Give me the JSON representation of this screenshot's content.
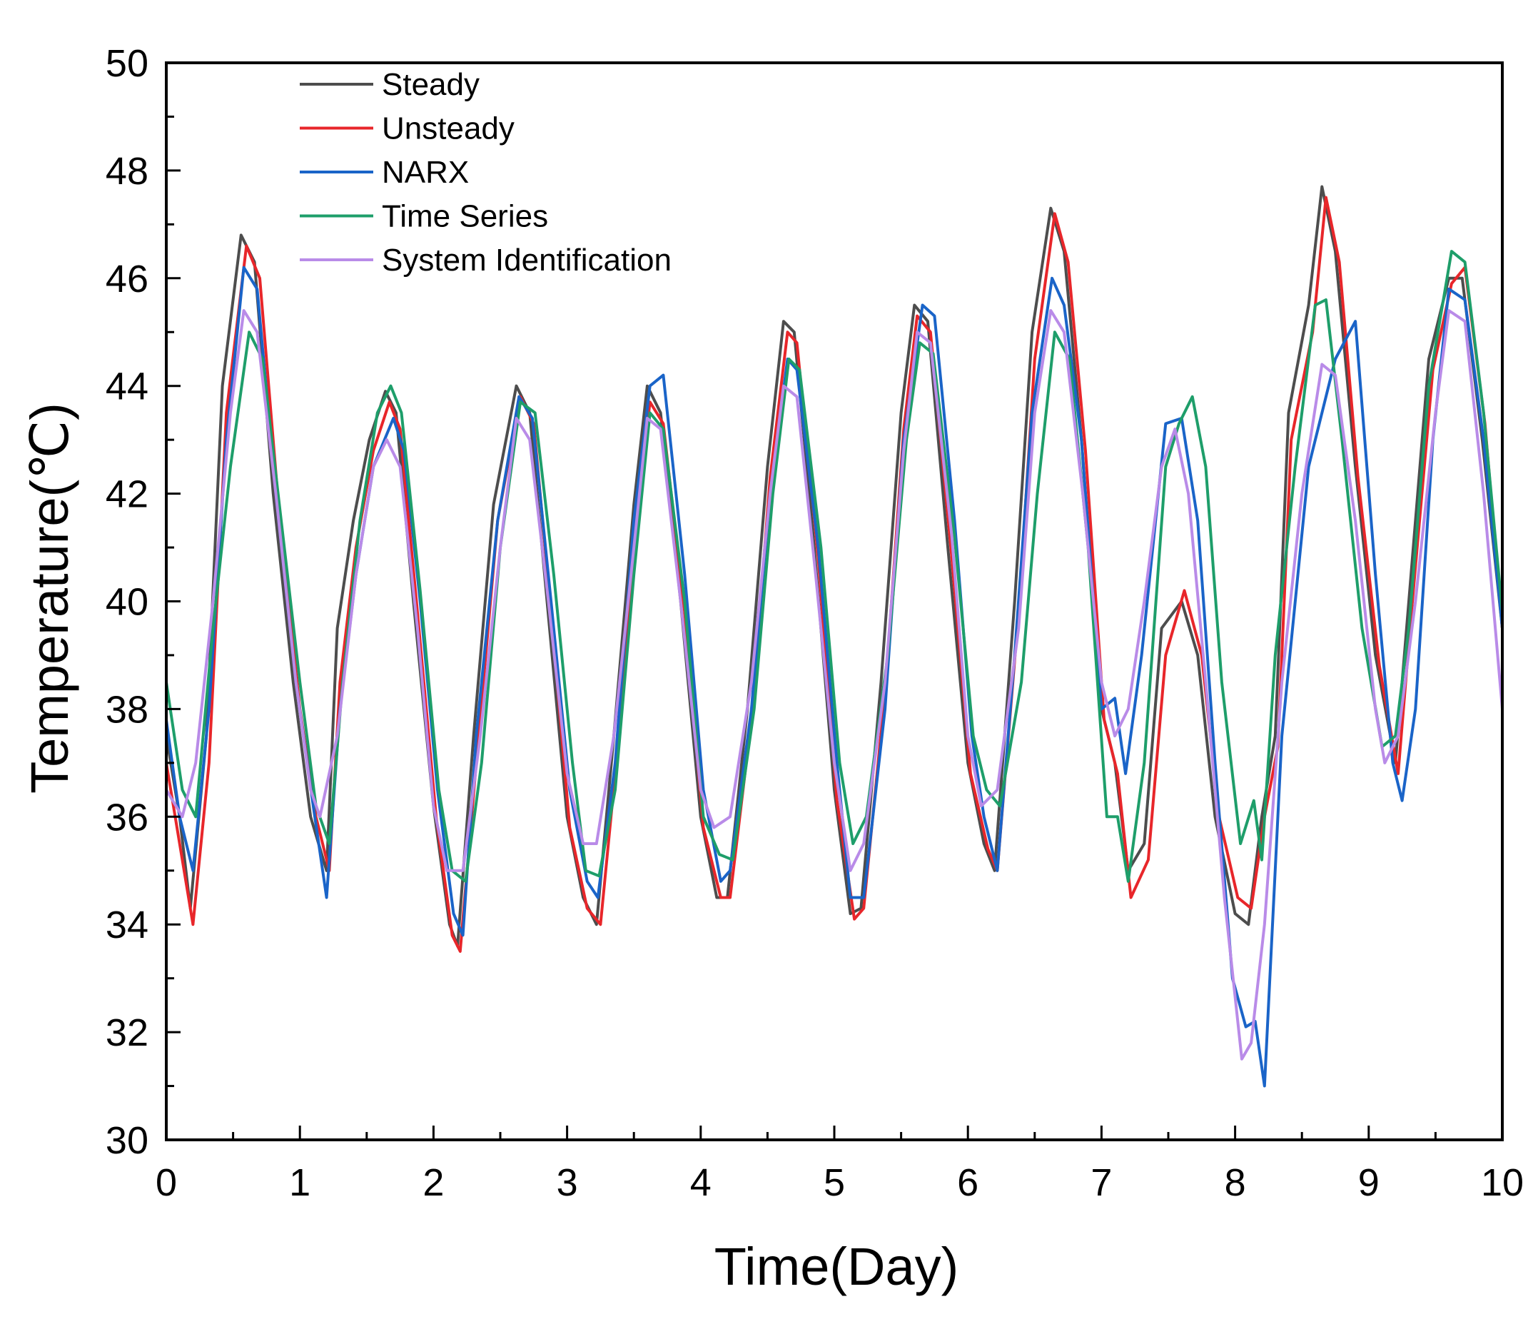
{
  "chart_data": {
    "type": "line",
    "title": "",
    "xlabel": "Time(Day)",
    "ylabel": "Temperature(℃)",
    "xlim": [
      0,
      10
    ],
    "ylim": [
      30,
      50
    ],
    "xticks": [
      0,
      1,
      2,
      3,
      4,
      5,
      6,
      7,
      8,
      9,
      10
    ],
    "yticks": [
      30,
      32,
      34,
      36,
      38,
      40,
      42,
      44,
      46,
      48,
      50
    ],
    "grid": false,
    "legend_position": "top-left",
    "series": [
      {
        "name": "Steady",
        "color": "#4d4d4d",
        "x": [
          0.0,
          0.1,
          0.18,
          0.3,
          0.42,
          0.56,
          0.66,
          0.8,
          0.95,
          1.08,
          1.2,
          1.28,
          1.4,
          1.52,
          1.64,
          1.72,
          1.85,
          2.0,
          2.12,
          2.18,
          2.3,
          2.45,
          2.62,
          2.72,
          2.85,
          3.0,
          3.12,
          3.22,
          3.35,
          3.5,
          3.6,
          3.7,
          3.85,
          4.0,
          4.12,
          4.2,
          4.35,
          4.5,
          4.62,
          4.7,
          4.85,
          5.0,
          5.12,
          5.2,
          5.35,
          5.5,
          5.6,
          5.7,
          5.85,
          6.0,
          6.12,
          6.2,
          6.35,
          6.48,
          6.62,
          6.72,
          6.85,
          7.0,
          7.1,
          7.2,
          7.32,
          7.45,
          7.6,
          7.72,
          7.85,
          8.0,
          8.1,
          8.2,
          8.3,
          8.4,
          8.55,
          8.65,
          8.75,
          8.9,
          9.05,
          9.2,
          9.3,
          9.45,
          9.6,
          9.7,
          9.85,
          10.0
        ],
        "values": [
          37.5,
          36.0,
          34.3,
          37.5,
          44.0,
          46.8,
          46.3,
          42.0,
          38.5,
          36.0,
          35.0,
          39.5,
          41.5,
          43.0,
          43.9,
          43.5,
          40.0,
          36.2,
          34.0,
          33.6,
          37.5,
          41.8,
          44.0,
          43.5,
          40.0,
          36.0,
          34.5,
          34.0,
          37.5,
          41.8,
          44.0,
          43.5,
          40.0,
          36.0,
          34.5,
          34.5,
          38.0,
          42.5,
          45.2,
          45.0,
          41.0,
          36.5,
          34.2,
          34.3,
          38.5,
          43.5,
          45.5,
          45.2,
          41.0,
          37.0,
          35.5,
          35.0,
          40.0,
          45.0,
          47.3,
          46.5,
          43.0,
          38.0,
          37.0,
          35.0,
          35.5,
          39.5,
          40.0,
          39.0,
          36.0,
          34.2,
          34.0,
          36.0,
          37.5,
          43.5,
          45.5,
          47.7,
          46.5,
          42.5,
          39.0,
          37.0,
          40.0,
          44.5,
          46.0,
          46.0,
          43.0,
          39.5
        ]
      },
      {
        "name": "Unsteady",
        "color": "#e8262a",
        "x": [
          0.0,
          0.1,
          0.2,
          0.32,
          0.45,
          0.6,
          0.7,
          0.85,
          1.0,
          1.12,
          1.22,
          1.3,
          1.42,
          1.55,
          1.67,
          1.75,
          1.88,
          2.02,
          2.14,
          2.2,
          2.32,
          2.48,
          2.65,
          2.75,
          2.88,
          3.02,
          3.15,
          3.25,
          3.38,
          3.52,
          3.62,
          3.72,
          3.88,
          4.02,
          4.15,
          4.22,
          4.38,
          4.52,
          4.65,
          4.72,
          4.88,
          5.02,
          5.15,
          5.22,
          5.38,
          5.52,
          5.62,
          5.72,
          5.88,
          6.02,
          6.15,
          6.22,
          6.38,
          6.5,
          6.65,
          6.75,
          6.88,
          7.02,
          7.12,
          7.22,
          7.35,
          7.48,
          7.62,
          7.75,
          7.88,
          8.02,
          8.12,
          8.22,
          8.32,
          8.42,
          8.58,
          8.68,
          8.78,
          8.92,
          9.08,
          9.22,
          9.32,
          9.48,
          9.62,
          9.72,
          9.87,
          10.0
        ],
        "values": [
          37.0,
          35.5,
          34.0,
          37.0,
          43.5,
          46.6,
          46.0,
          41.5,
          38.0,
          36.0,
          35.0,
          38.5,
          41.0,
          42.8,
          43.7,
          43.2,
          39.8,
          36.0,
          33.8,
          33.5,
          37.0,
          41.5,
          43.8,
          43.3,
          39.8,
          35.8,
          34.3,
          34.0,
          37.3,
          41.5,
          43.7,
          43.3,
          39.8,
          35.8,
          34.5,
          34.5,
          37.8,
          42.3,
          45.0,
          44.8,
          40.8,
          36.3,
          34.1,
          34.3,
          38.3,
          43.2,
          45.3,
          45.0,
          40.8,
          36.8,
          35.4,
          35.0,
          39.8,
          44.5,
          47.2,
          46.3,
          42.8,
          37.8,
          36.8,
          34.5,
          35.2,
          39.0,
          40.2,
          39.0,
          36.0,
          34.5,
          34.3,
          36.0,
          37.3,
          43.0,
          45.0,
          47.5,
          46.3,
          42.3,
          38.8,
          36.8,
          39.8,
          44.3,
          45.9,
          46.2,
          43.3,
          39.5
        ]
      },
      {
        "name": "NARX",
        "color": "#1a64c8",
        "x": [
          0.0,
          0.1,
          0.2,
          0.32,
          0.45,
          0.58,
          0.68,
          0.82,
          0.97,
          1.1,
          1.2,
          1.3,
          1.42,
          1.55,
          1.7,
          1.78,
          1.9,
          2.03,
          2.15,
          2.22,
          2.32,
          2.48,
          2.64,
          2.74,
          2.88,
          3.02,
          3.15,
          3.23,
          3.36,
          3.5,
          3.62,
          3.72,
          3.88,
          4.02,
          4.15,
          4.22,
          4.38,
          4.52,
          4.65,
          4.72,
          4.88,
          5.02,
          5.12,
          5.22,
          5.38,
          5.52,
          5.66,
          5.75,
          5.9,
          6.03,
          6.12,
          6.22,
          6.35,
          6.48,
          6.63,
          6.72,
          6.85,
          7.0,
          7.1,
          7.18,
          7.3,
          7.48,
          7.6,
          7.72,
          7.85,
          7.98,
          8.08,
          8.15,
          8.22,
          8.35,
          8.55,
          8.75,
          8.9,
          9.05,
          9.18,
          9.25,
          9.35,
          9.48,
          9.6,
          9.72,
          9.86,
          10.0
        ],
        "values": [
          37.8,
          36.0,
          35.0,
          38.0,
          43.0,
          46.2,
          45.8,
          42.0,
          38.5,
          36.2,
          34.5,
          38.0,
          40.5,
          42.5,
          43.4,
          42.8,
          40.0,
          36.5,
          34.2,
          33.8,
          37.5,
          41.5,
          43.8,
          43.4,
          40.0,
          36.5,
          34.8,
          34.5,
          37.0,
          41.5,
          44.0,
          44.2,
          40.5,
          36.5,
          34.8,
          35.0,
          38.0,
          42.0,
          44.5,
          44.3,
          41.0,
          37.0,
          34.5,
          34.5,
          38.0,
          43.0,
          45.5,
          45.3,
          41.5,
          37.5,
          36.0,
          35.0,
          39.0,
          43.5,
          46.0,
          45.5,
          43.0,
          38.0,
          38.2,
          36.8,
          39.0,
          43.3,
          43.4,
          41.5,
          37.0,
          33.0,
          32.1,
          32.2,
          31.0,
          37.5,
          42.5,
          44.5,
          45.2,
          40.5,
          37.0,
          36.3,
          38.0,
          43.0,
          45.8,
          45.6,
          43.0,
          39.5
        ]
      },
      {
        "name": "Time Series",
        "color": "#1e9e6a",
        "x": [
          0.0,
          0.12,
          0.22,
          0.35,
          0.48,
          0.62,
          0.72,
          0.86,
          1.0,
          1.12,
          1.22,
          1.32,
          1.45,
          1.58,
          1.68,
          1.76,
          1.9,
          2.04,
          2.14,
          2.24,
          2.36,
          2.5,
          2.65,
          2.76,
          2.9,
          3.04,
          3.14,
          3.24,
          3.36,
          3.5,
          3.62,
          3.72,
          3.88,
          4.02,
          4.14,
          4.24,
          4.4,
          4.54,
          4.66,
          4.74,
          4.9,
          5.04,
          5.14,
          5.24,
          5.4,
          5.54,
          5.64,
          5.74,
          5.9,
          6.04,
          6.14,
          6.24,
          6.4,
          6.52,
          6.65,
          6.76,
          6.9,
          7.04,
          7.12,
          7.2,
          7.32,
          7.48,
          7.58,
          7.68,
          7.78,
          7.9,
          8.04,
          8.14,
          8.2,
          8.3,
          8.45,
          8.6,
          8.68,
          8.8,
          8.95,
          9.1,
          9.2,
          9.3,
          9.45,
          9.62,
          9.72,
          9.86,
          10.0
        ],
        "values": [
          38.5,
          36.5,
          36.0,
          39.5,
          42.5,
          45.0,
          44.5,
          41.5,
          38.5,
          36.2,
          35.5,
          38.5,
          41.5,
          43.5,
          44.0,
          43.5,
          40.2,
          36.5,
          35.0,
          34.8,
          37.0,
          41.0,
          43.7,
          43.5,
          40.5,
          37.0,
          35.0,
          34.9,
          36.5,
          40.5,
          43.5,
          43.2,
          40.0,
          36.0,
          35.3,
          35.2,
          38.0,
          42.0,
          44.5,
          44.3,
          41.0,
          37.0,
          35.5,
          36.0,
          39.0,
          43.0,
          44.8,
          44.6,
          41.2,
          37.5,
          36.5,
          36.2,
          38.5,
          42.0,
          45.0,
          44.5,
          41.0,
          36.0,
          36.0,
          34.8,
          37.0,
          42.5,
          43.3,
          43.8,
          42.5,
          38.5,
          35.5,
          36.3,
          35.2,
          39.0,
          42.5,
          45.5,
          45.6,
          43.0,
          39.5,
          37.3,
          37.5,
          39.5,
          44.0,
          46.5,
          46.3,
          43.5,
          39.8
        ]
      },
      {
        "name": "System Identification",
        "color": "#b98be8",
        "x": [
          0.0,
          0.12,
          0.22,
          0.35,
          0.48,
          0.58,
          0.68,
          0.82,
          0.97,
          1.08,
          1.15,
          1.28,
          1.42,
          1.55,
          1.65,
          1.75,
          1.88,
          2.0,
          2.1,
          2.22,
          2.35,
          2.5,
          2.62,
          2.72,
          2.86,
          3.0,
          3.12,
          3.22,
          3.35,
          3.5,
          3.6,
          3.7,
          3.85,
          4.0,
          4.1,
          4.22,
          4.38,
          4.52,
          4.62,
          4.72,
          4.86,
          5.0,
          5.12,
          5.22,
          5.38,
          5.52,
          5.62,
          5.72,
          5.88,
          6.0,
          6.1,
          6.22,
          6.38,
          6.5,
          6.62,
          6.72,
          6.86,
          7.0,
          7.1,
          7.2,
          7.32,
          7.45,
          7.55,
          7.65,
          7.78,
          7.92,
          8.05,
          8.12,
          8.22,
          8.35,
          8.5,
          8.65,
          8.75,
          8.9,
          9.05,
          9.12,
          9.22,
          9.35,
          9.5,
          9.6,
          9.72,
          9.86,
          10.0
        ],
        "values": [
          36.5,
          36.0,
          37.0,
          40.0,
          43.5,
          45.4,
          45.0,
          42.0,
          38.5,
          36.5,
          36.0,
          37.5,
          40.5,
          42.5,
          43.0,
          42.5,
          39.5,
          36.2,
          35.0,
          35.0,
          37.5,
          41.0,
          43.4,
          43.0,
          40.0,
          36.8,
          35.5,
          35.5,
          37.5,
          41.0,
          43.4,
          43.2,
          40.0,
          36.5,
          35.8,
          36.0,
          38.5,
          42.0,
          44.0,
          43.8,
          40.5,
          37.0,
          35.0,
          35.5,
          38.5,
          42.8,
          45.0,
          44.8,
          41.2,
          37.5,
          36.2,
          36.5,
          39.5,
          43.5,
          45.4,
          45.0,
          42.0,
          38.5,
          37.5,
          38.0,
          40.0,
          42.5,
          43.2,
          42.0,
          38.5,
          34.5,
          31.5,
          31.8,
          34.0,
          38.5,
          42.0,
          44.4,
          44.2,
          41.5,
          38.0,
          37.0,
          37.5,
          40.0,
          43.5,
          45.4,
          45.2,
          42.0,
          38.0
        ]
      }
    ]
  }
}
